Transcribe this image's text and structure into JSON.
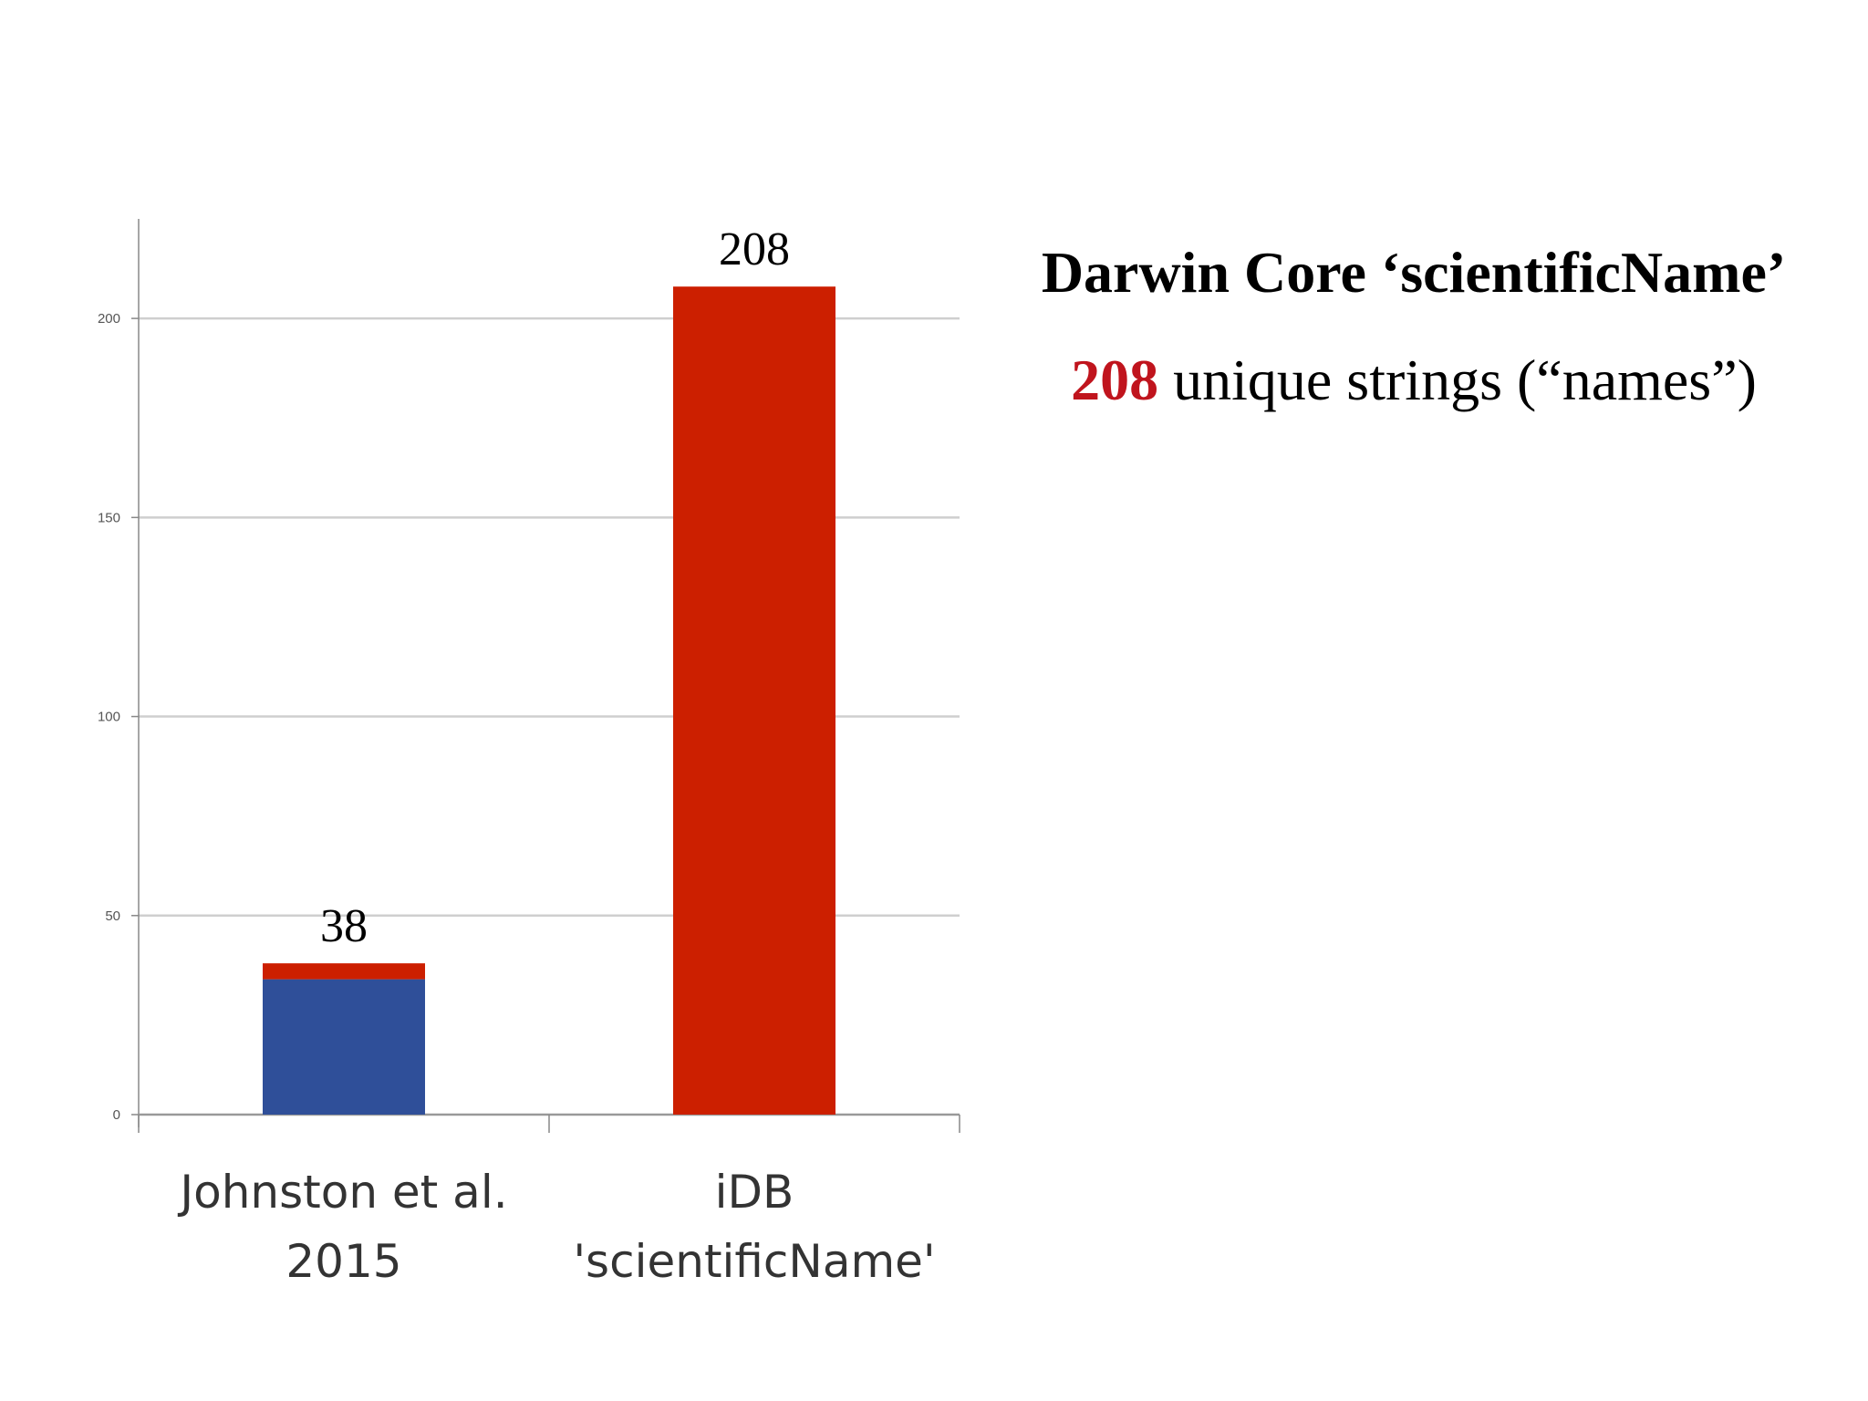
{
  "chart_data": {
    "type": "bar",
    "stacked": true,
    "categories": [
      [
        "Johnston et al.",
        "2015"
      ],
      [
        "iDB",
        "'scientificName'"
      ]
    ],
    "series": [
      {
        "values": [
          34,
          0
        ],
        "color": "#2f4f99"
      },
      {
        "values": [
          4,
          208
        ],
        "color": "#cc1f00"
      }
    ],
    "data_labels": [
      "38",
      "208"
    ],
    "y_ticks": [
      0,
      50,
      100,
      150,
      200
    ],
    "ylim": [
      0,
      225
    ],
    "grid": true,
    "legend": "none"
  },
  "text_panel": {
    "heading": "Darwin Core ‘scientificName’",
    "highlight_number": "208",
    "highlight_color": "#c0141d",
    "subline_rest": " unique strings (“names”)"
  }
}
